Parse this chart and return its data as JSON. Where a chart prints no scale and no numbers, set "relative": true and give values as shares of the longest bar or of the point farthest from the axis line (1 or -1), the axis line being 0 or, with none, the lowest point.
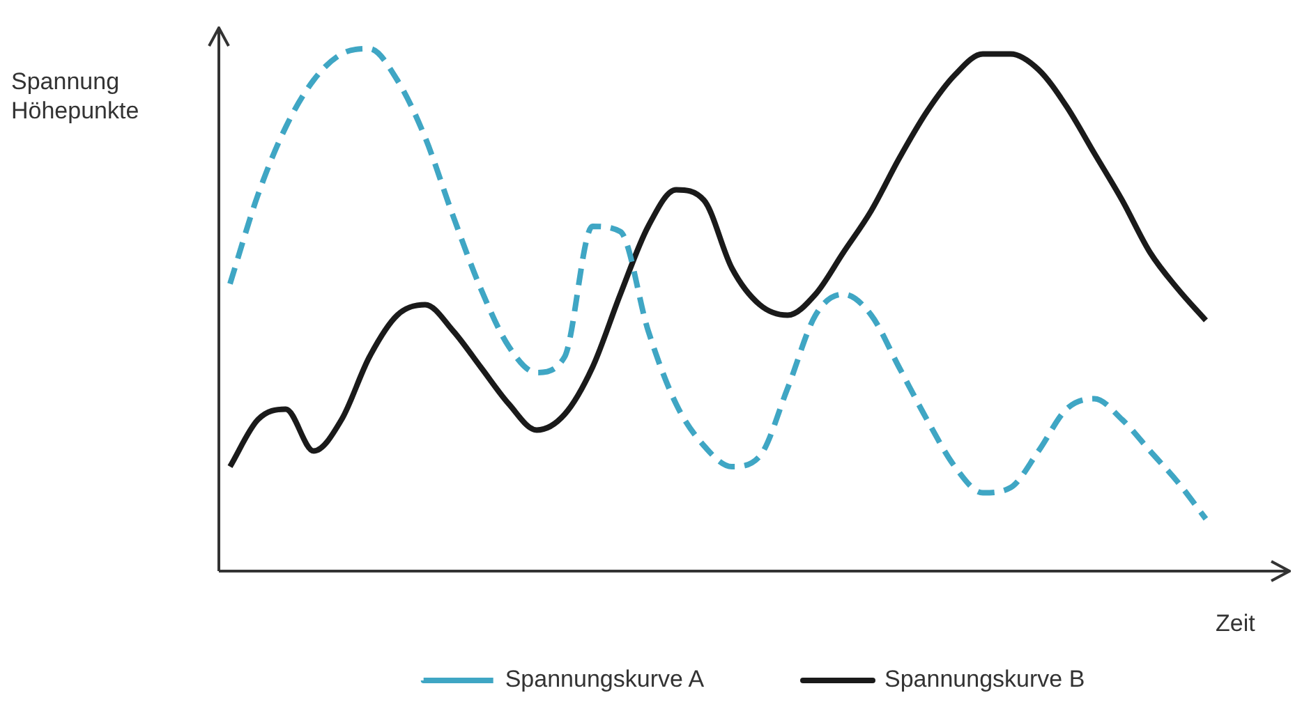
{
  "chart_data": {
    "type": "line",
    "relative": true,
    "xlabel": "Zeit",
    "ylabel": "Spannung\nHöhepunkte",
    "legend": "bottom",
    "marker": "none",
    "categories": [
      null,
      null,
      null,
      null,
      null,
      null,
      null,
      null,
      null,
      null,
      null,
      null,
      null,
      null,
      null,
      null,
      null,
      null,
      null,
      null,
      null,
      null,
      null,
      null,
      null,
      null,
      null,
      null,
      null,
      null,
      null,
      null,
      null,
      null,
      null,
      null
    ],
    "series": [
      {
        "name": "Spannungskurve A",
        "color": "#3fa6c4",
        "line_style": "dashed",
        "values": [
          0.55,
          0.72,
          0.85,
          0.94,
          0.99,
          1,
          0.94,
          0.83,
          0.68,
          0.54,
          0.43,
          0.38,
          0.41,
          0.66,
          0.65,
          0.46,
          0.32,
          0.24,
          0.2,
          0.22,
          0.35,
          0.49,
          0.53,
          0.49,
          0.39,
          0.29,
          0.2,
          0.15,
          0.16,
          0.23,
          0.31,
          0.33,
          0.29,
          0.23,
          0.17,
          0.1
        ]
      },
      {
        "name": "Spannungskurve B",
        "color": "#1a1a1a",
        "line_style": "solid",
        "values": [
          0.2,
          0.29,
          0.31,
          0.23,
          0.29,
          0.41,
          0.49,
          0.51,
          0.46,
          0.39,
          0.32,
          0.27,
          0.3,
          0.39,
          0.53,
          0.66,
          0.73,
          0.71,
          0.58,
          0.51,
          0.49,
          0.53,
          0.61,
          0.69,
          0.79,
          0.88,
          0.95,
          0.99,
          0.99,
          0.96,
          0.89,
          0.8,
          0.71,
          0.61,
          0.54,
          0.48
        ]
      }
    ]
  }
}
